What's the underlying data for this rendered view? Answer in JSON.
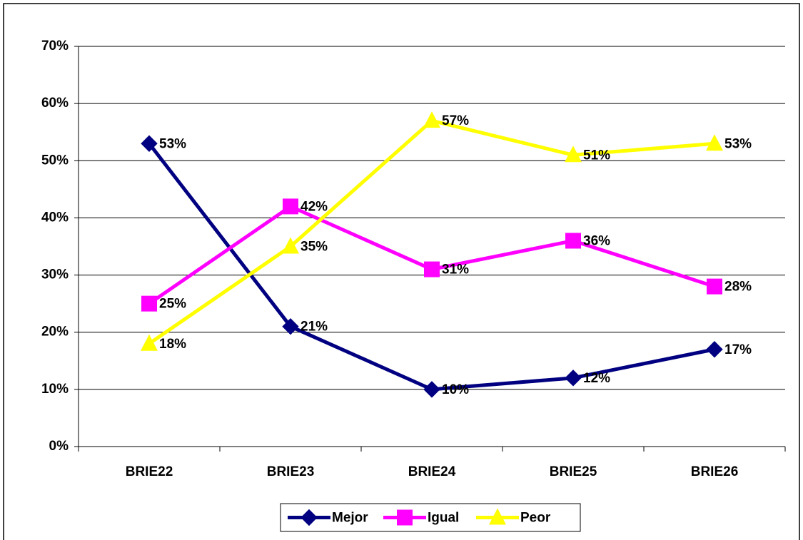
{
  "chart_data": {
    "type": "line",
    "categories": [
      "BRIE22",
      "BRIE23",
      "BRIE24",
      "BRIE25",
      "BRIE26"
    ],
    "series": [
      {
        "name": "Mejor",
        "color": "#000080",
        "marker": "diamond",
        "values": [
          53,
          21,
          10,
          12,
          17
        ],
        "value_labels": [
          "53%",
          "21%",
          "10%",
          "12%",
          "17%"
        ]
      },
      {
        "name": "Igual",
        "color": "#ff00ff",
        "marker": "square",
        "values": [
          25,
          42,
          31,
          36,
          28
        ],
        "value_labels": [
          "25%",
          "42%",
          "31%",
          "36%",
          "28%"
        ]
      },
      {
        "name": "Peor",
        "color": "#ffff00",
        "marker": "triangle",
        "values": [
          18,
          35,
          57,
          51,
          53
        ],
        "value_labels": [
          "18%",
          "35%",
          "57%",
          "51%",
          "53%"
        ]
      }
    ],
    "ylim": [
      0,
      70
    ],
    "yticks": [
      {
        "value": 0,
        "label": "0%"
      },
      {
        "value": 10,
        "label": "10%"
      },
      {
        "value": 20,
        "label": "20%"
      },
      {
        "value": 30,
        "label": "30%"
      },
      {
        "value": 40,
        "label": "40%"
      },
      {
        "value": 50,
        "label": "50%"
      },
      {
        "value": 60,
        "label": "60%"
      },
      {
        "value": 70,
        "label": "70%"
      }
    ],
    "grid": true,
    "legend": "bottom"
  }
}
